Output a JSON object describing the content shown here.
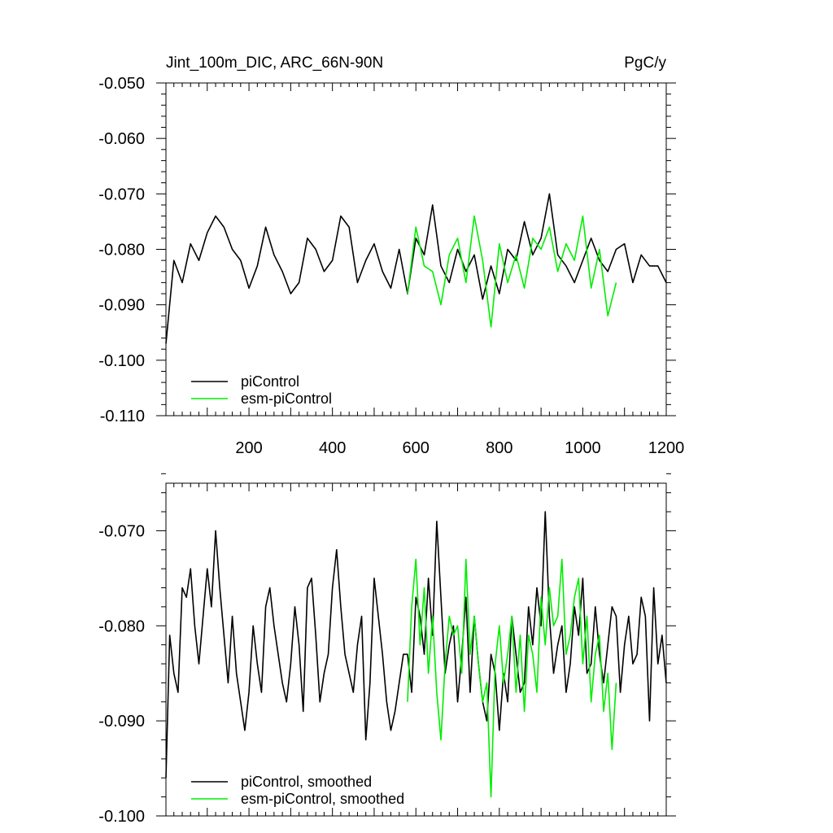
{
  "chart_data": [
    {
      "type": "line",
      "title": "Jint_100m_DIC, ARC_66N-90N",
      "units": "PgC/y",
      "xlim": [
        1,
        1200
      ],
      "ylim": [
        -0.11,
        -0.05
      ],
      "x_ticks": [
        200,
        400,
        600,
        800,
        1000,
        1200
      ],
      "x_tick_labels": [
        "200",
        "400",
        "600",
        "800",
        "1000",
        "1200"
      ],
      "y_ticks": [
        -0.05,
        -0.06,
        -0.07,
        -0.08,
        -0.09,
        -0.1,
        -0.11
      ],
      "y_tick_labels": [
        "-0.050",
        "-0.060",
        "-0.070",
        "-0.080",
        "-0.090",
        "-0.100",
        "-0.110"
      ],
      "grid": false,
      "legend_position": "bottom-left",
      "series": [
        {
          "name": "piControl",
          "color": "#000000",
          "x": [
            1,
            20,
            40,
            60,
            80,
            100,
            120,
            140,
            160,
            180,
            200,
            220,
            240,
            260,
            280,
            300,
            320,
            340,
            360,
            380,
            400,
            420,
            440,
            460,
            480,
            500,
            520,
            540,
            560,
            580,
            600,
            620,
            640,
            660,
            680,
            700,
            720,
            740,
            760,
            780,
            800,
            820,
            840,
            860,
            880,
            900,
            920,
            940,
            960,
            980,
            1000,
            1020,
            1040,
            1060,
            1080,
            1100,
            1120,
            1140,
            1160,
            1180,
            1200
          ],
          "y": [
            -0.097,
            -0.082,
            -0.086,
            -0.079,
            -0.082,
            -0.077,
            -0.074,
            -0.076,
            -0.08,
            -0.082,
            -0.087,
            -0.083,
            -0.076,
            -0.081,
            -0.084,
            -0.088,
            -0.086,
            -0.078,
            -0.08,
            -0.084,
            -0.082,
            -0.074,
            -0.076,
            -0.086,
            -0.082,
            -0.079,
            -0.084,
            -0.087,
            -0.08,
            -0.088,
            -0.078,
            -0.081,
            -0.072,
            -0.083,
            -0.086,
            -0.08,
            -0.084,
            -0.081,
            -0.089,
            -0.083,
            -0.088,
            -0.08,
            -0.082,
            -0.075,
            -0.081,
            -0.078,
            -0.07,
            -0.081,
            -0.083,
            -0.086,
            -0.082,
            -0.078,
            -0.082,
            -0.084,
            -0.08,
            -0.079,
            -0.086,
            -0.081,
            -0.083,
            -0.083,
            -0.086
          ]
        },
        {
          "name": "esm-piControl",
          "color": "#00ee00",
          "x": [
            580,
            600,
            620,
            640,
            660,
            680,
            700,
            720,
            740,
            760,
            780,
            800,
            820,
            840,
            860,
            880,
            900,
            920,
            940,
            960,
            980,
            1000,
            1020,
            1040,
            1060,
            1080
          ],
          "y": [
            -0.088,
            -0.076,
            -0.083,
            -0.084,
            -0.09,
            -0.081,
            -0.078,
            -0.086,
            -0.074,
            -0.082,
            -0.094,
            -0.079,
            -0.086,
            -0.081,
            -0.087,
            -0.078,
            -0.08,
            -0.076,
            -0.084,
            -0.079,
            -0.082,
            -0.074,
            -0.087,
            -0.08,
            -0.092,
            -0.086
          ]
        }
      ]
    },
    {
      "type": "line",
      "xlim": [
        1,
        1200
      ],
      "ylim": [
        -0.1,
        -0.065
      ],
      "y_ticks": [
        -0.07,
        -0.08,
        -0.09,
        -0.1
      ],
      "y_tick_labels": [
        "-0.070",
        "-0.080",
        "-0.090",
        "-0.100"
      ],
      "grid": false,
      "legend_position": "bottom-left",
      "series": [
        {
          "name": "piControl, smoothed",
          "color": "#000000",
          "x": [
            1,
            10,
            20,
            30,
            40,
            50,
            60,
            70,
            80,
            90,
            100,
            110,
            120,
            130,
            140,
            150,
            160,
            170,
            180,
            190,
            200,
            210,
            220,
            230,
            240,
            250,
            260,
            270,
            280,
            290,
            300,
            310,
            320,
            330,
            340,
            350,
            360,
            370,
            380,
            390,
            400,
            410,
            420,
            430,
            440,
            450,
            460,
            470,
            480,
            490,
            500,
            510,
            520,
            530,
            540,
            550,
            560,
            570,
            580,
            590,
            600,
            610,
            620,
            630,
            640,
            650,
            660,
            670,
            680,
            690,
            700,
            710,
            720,
            730,
            740,
            750,
            760,
            770,
            780,
            790,
            800,
            810,
            820,
            830,
            840,
            850,
            860,
            870,
            880,
            890,
            900,
            910,
            920,
            930,
            940,
            950,
            960,
            970,
            980,
            990,
            1000,
            1010,
            1020,
            1030,
            1040,
            1050,
            1060,
            1070,
            1080,
            1090,
            1100,
            1110,
            1120,
            1130,
            1140,
            1150,
            1160,
            1170,
            1180,
            1190,
            1200
          ],
          "y": [
            -0.096,
            -0.081,
            -0.085,
            -0.087,
            -0.076,
            -0.077,
            -0.074,
            -0.08,
            -0.084,
            -0.079,
            -0.074,
            -0.078,
            -0.07,
            -0.076,
            -0.081,
            -0.086,
            -0.079,
            -0.085,
            -0.088,
            -0.091,
            -0.087,
            -0.08,
            -0.084,
            -0.087,
            -0.078,
            -0.076,
            -0.08,
            -0.083,
            -0.086,
            -0.088,
            -0.084,
            -0.078,
            -0.082,
            -0.089,
            -0.076,
            -0.075,
            -0.081,
            -0.088,
            -0.085,
            -0.083,
            -0.076,
            -0.072,
            -0.078,
            -0.083,
            -0.085,
            -0.087,
            -0.082,
            -0.079,
            -0.092,
            -0.086,
            -0.075,
            -0.079,
            -0.083,
            -0.088,
            -0.091,
            -0.089,
            -0.086,
            -0.083,
            -0.083,
            -0.087,
            -0.077,
            -0.079,
            -0.083,
            -0.075,
            -0.081,
            -0.069,
            -0.077,
            -0.085,
            -0.082,
            -0.08,
            -0.088,
            -0.083,
            -0.077,
            -0.087,
            -0.079,
            -0.084,
            -0.088,
            -0.09,
            -0.083,
            -0.085,
            -0.091,
            -0.085,
            -0.088,
            -0.079,
            -0.083,
            -0.087,
            -0.086,
            -0.078,
            -0.082,
            -0.076,
            -0.08,
            -0.068,
            -0.079,
            -0.085,
            -0.082,
            -0.08,
            -0.087,
            -0.084,
            -0.078,
            -0.081,
            -0.075,
            -0.085,
            -0.084,
            -0.078,
            -0.083,
            -0.086,
            -0.082,
            -0.078,
            -0.079,
            -0.087,
            -0.082,
            -0.079,
            -0.084,
            -0.083,
            -0.077,
            -0.079,
            -0.09,
            -0.076,
            -0.084,
            -0.081,
            -0.086
          ]
        },
        {
          "name": "esm-piControl, smoothed",
          "color": "#00ee00",
          "x": [
            580,
            590,
            600,
            610,
            620,
            630,
            640,
            650,
            660,
            670,
            680,
            690,
            700,
            710,
            720,
            730,
            740,
            750,
            760,
            770,
            780,
            790,
            800,
            810,
            820,
            830,
            840,
            850,
            860,
            870,
            880,
            890,
            900,
            910,
            920,
            930,
            940,
            950,
            960,
            970,
            980,
            990,
            1000,
            1010,
            1020,
            1030,
            1040,
            1050,
            1060,
            1070,
            1080
          ],
          "y": [
            -0.088,
            -0.078,
            -0.073,
            -0.082,
            -0.076,
            -0.085,
            -0.079,
            -0.087,
            -0.092,
            -0.084,
            -0.079,
            -0.081,
            -0.08,
            -0.085,
            -0.073,
            -0.083,
            -0.079,
            -0.084,
            -0.088,
            -0.086,
            -0.098,
            -0.084,
            -0.08,
            -0.086,
            -0.083,
            -0.079,
            -0.087,
            -0.081,
            -0.089,
            -0.081,
            -0.083,
            -0.087,
            -0.077,
            -0.082,
            -0.076,
            -0.08,
            -0.079,
            -0.073,
            -0.083,
            -0.081,
            -0.077,
            -0.075,
            -0.084,
            -0.079,
            -0.088,
            -0.083,
            -0.081,
            -0.089,
            -0.085,
            -0.093,
            -0.086
          ]
        }
      ]
    }
  ]
}
